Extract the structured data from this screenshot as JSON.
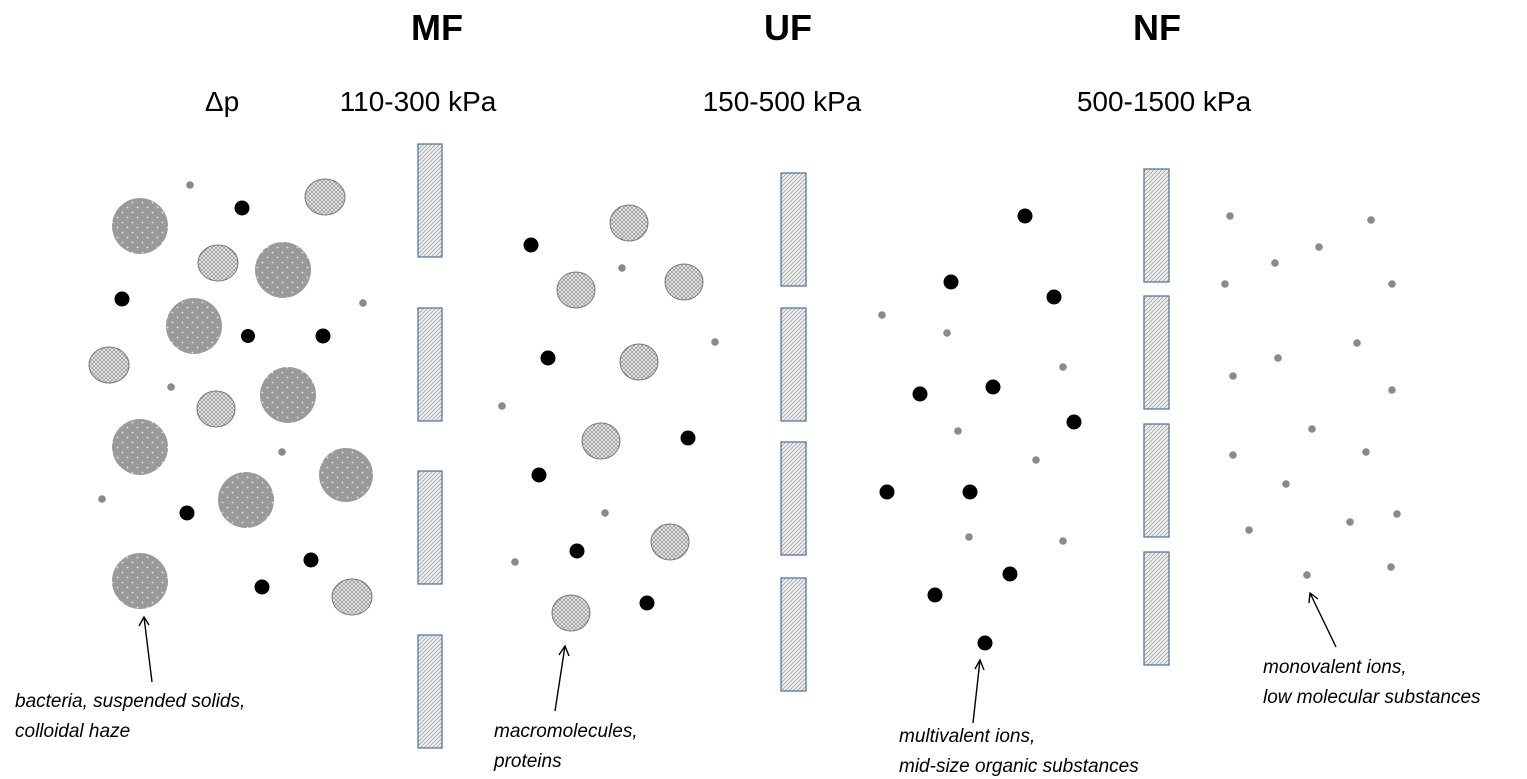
{
  "processes": [
    {
      "name": "MF",
      "pressure": "110-300 kPa"
    },
    {
      "name": "UF",
      "pressure": "150-500 kPa"
    },
    {
      "name": "NF",
      "pressure": "500-1500 kPa"
    }
  ],
  "pressure_symbol": "Δp",
  "labels": {
    "bacteria": [
      "bacteria, suspended solids,",
      "colloidal haze"
    ],
    "macromolecules": [
      "macromolecules,",
      "proteins"
    ],
    "multivalent": [
      "multivalent ions,",
      "mid-size organic substances"
    ],
    "monovalent": [
      "monovalent ions,",
      "low molecular substances"
    ]
  },
  "colors": {
    "membrane_border": "#4a6f9a",
    "large_particle": "#9a9a9a",
    "medium_particle": "#d8d8d8",
    "ion_black": "#000000",
    "ion_small": "#8a8a8a"
  }
}
